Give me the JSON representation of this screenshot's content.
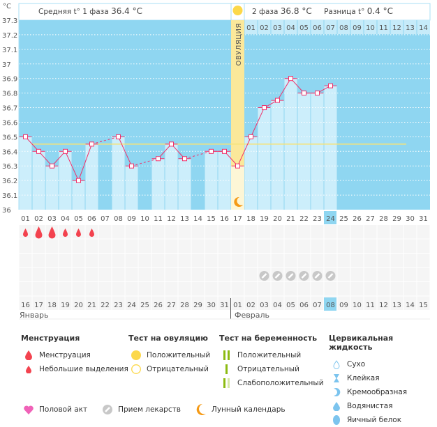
{
  "chart_data": {
    "type": "line",
    "yunit": "°C",
    "ylim": [
      36,
      37.3
    ],
    "yticks": [
      "37.3",
      "37.2",
      "37.1",
      "37",
      "36.9",
      "36.8",
      "36.7",
      "36.6",
      "36.5",
      "36.4",
      "36.3",
      "36.2",
      "36.1",
      "36"
    ],
    "cycle_days": [
      "01",
      "02",
      "03",
      "04",
      "05",
      "06",
      "07",
      "08",
      "09",
      "10",
      "11",
      "12",
      "13",
      "14",
      "15",
      "16",
      "17",
      "18",
      "19",
      "20",
      "21",
      "22",
      "23",
      "24",
      "25",
      "26",
      "27",
      "28",
      "29",
      "30",
      "31"
    ],
    "temperatures": [
      36.5,
      36.4,
      36.3,
      36.4,
      36.2,
      36.45,
      null,
      36.5,
      36.3,
      null,
      36.35,
      36.45,
      36.35,
      null,
      36.4,
      36.4,
      36.3,
      36.5,
      36.7,
      36.75,
      36.9,
      36.8,
      36.8,
      36.85,
      null,
      null,
      null,
      null,
      null,
      null,
      null
    ],
    "coverline": 36.45,
    "ovulation_day": 17,
    "ovulation_label": "ОВУЛЯЦИЯ",
    "current_day": "24",
    "phase2_days": [
      "01",
      "02",
      "03",
      "04",
      "05",
      "06",
      "07",
      "08",
      "09",
      "10",
      "11",
      "12",
      "13",
      "14"
    ],
    "grid": true
  },
  "header": {
    "phase1": "Средняя t° 1 фаза",
    "phase1_value": "36.4 °C",
    "phase2": "2 фаза",
    "phase2_value": "36.8 °C",
    "diff": "Разница t°",
    "diff_value": "0.4 °C"
  },
  "marks": {
    "menstruation": [
      "small",
      "big",
      "big",
      "small",
      "small",
      "small"
    ],
    "pills_days": [
      19,
      20,
      21,
      22,
      23,
      24
    ]
  },
  "calendar": {
    "dates": [
      "16",
      "17",
      "18",
      "19",
      "20",
      "21",
      "22",
      "23",
      "24",
      "25",
      "26",
      "27",
      "28",
      "29",
      "30",
      "31",
      "01",
      "02",
      "03",
      "04",
      "05",
      "06",
      "07",
      "08",
      "09",
      "10",
      "11",
      "12",
      "13",
      "14",
      "15"
    ],
    "weekend": [
      true,
      true,
      false,
      false,
      false,
      false,
      false,
      true,
      true,
      false,
      false,
      false,
      false,
      false,
      true,
      true,
      false,
      false,
      false,
      false,
      false,
      true,
      true,
      false,
      false,
      false,
      false,
      false,
      true,
      true,
      false
    ],
    "today": "08",
    "month1": "Январь",
    "month2": "Февраль"
  },
  "legend": {
    "menstruation": {
      "title": "Менструация",
      "items": [
        "Менструация",
        "Небольшие выделения"
      ]
    },
    "ovulation_test": {
      "title": "Тест на овуляцию",
      "items": [
        "Положительный",
        "Отрицательный"
      ]
    },
    "pregnancy_test": {
      "title": "Тест на беременность",
      "items": [
        "Положительный",
        "Отрицательный",
        "Слабоположительный"
      ]
    },
    "cervical": {
      "title": "Цервикальная жидкость",
      "items": [
        "Сухо",
        "Клейкая",
        "Кремообразная",
        "Водянистая",
        "Яичный белок"
      ]
    },
    "other": [
      "Половой акт",
      "Прием лекарств",
      "Лунный календарь"
    ]
  },
  "colors": {
    "bg": "#8fd6f1",
    "bar": "#cceefb",
    "line": "#f0306a",
    "coverline": "#f5e37a",
    "ovulation": "#fbe89a",
    "weekend": "#f0306a"
  }
}
